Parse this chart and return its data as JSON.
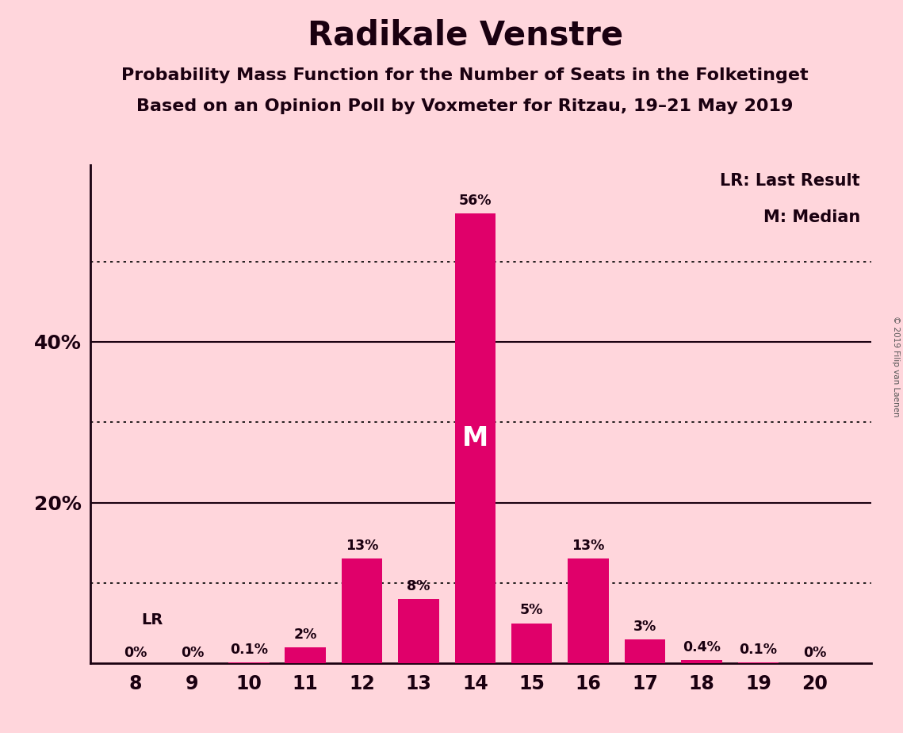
{
  "title": "Radikale Venstre",
  "subtitle1": "Probability Mass Function for the Number of Seats in the Folketinget",
  "subtitle2": "Based on an Opinion Poll by Voxmeter for Ritzau, 19–21 May 2019",
  "copyright": "© 2019 Filip van Laenen",
  "seats": [
    8,
    9,
    10,
    11,
    12,
    13,
    14,
    15,
    16,
    17,
    18,
    19,
    20
  ],
  "probabilities": [
    0.0,
    0.0,
    0.1,
    2.0,
    13.0,
    8.0,
    56.0,
    5.0,
    13.0,
    3.0,
    0.4,
    0.1,
    0.0
  ],
  "labels": [
    "0%",
    "0%",
    "0.1%",
    "2%",
    "13%",
    "8%",
    "56%",
    "5%",
    "13%",
    "3%",
    "0.4%",
    "0.1%",
    "0%"
  ],
  "bar_color": "#E0006A",
  "background_color": "#FFD6DC",
  "text_color": "#1A0010",
  "median_seat": 14,
  "lr_seat": 8,
  "legend_text1": "LR: Last Result",
  "legend_text2": "M: Median",
  "lr_label": "LR",
  "median_label": "M",
  "ylim": [
    0,
    62
  ],
  "dotted_lines": [
    10,
    30,
    50
  ],
  "solid_lines": [
    20,
    40
  ],
  "title_fontsize": 30,
  "subtitle_fontsize": 16,
  "bar_width": 0.72,
  "ytick_positions": [
    20,
    40
  ],
  "ytick_labels": [
    "20%",
    "40%"
  ]
}
